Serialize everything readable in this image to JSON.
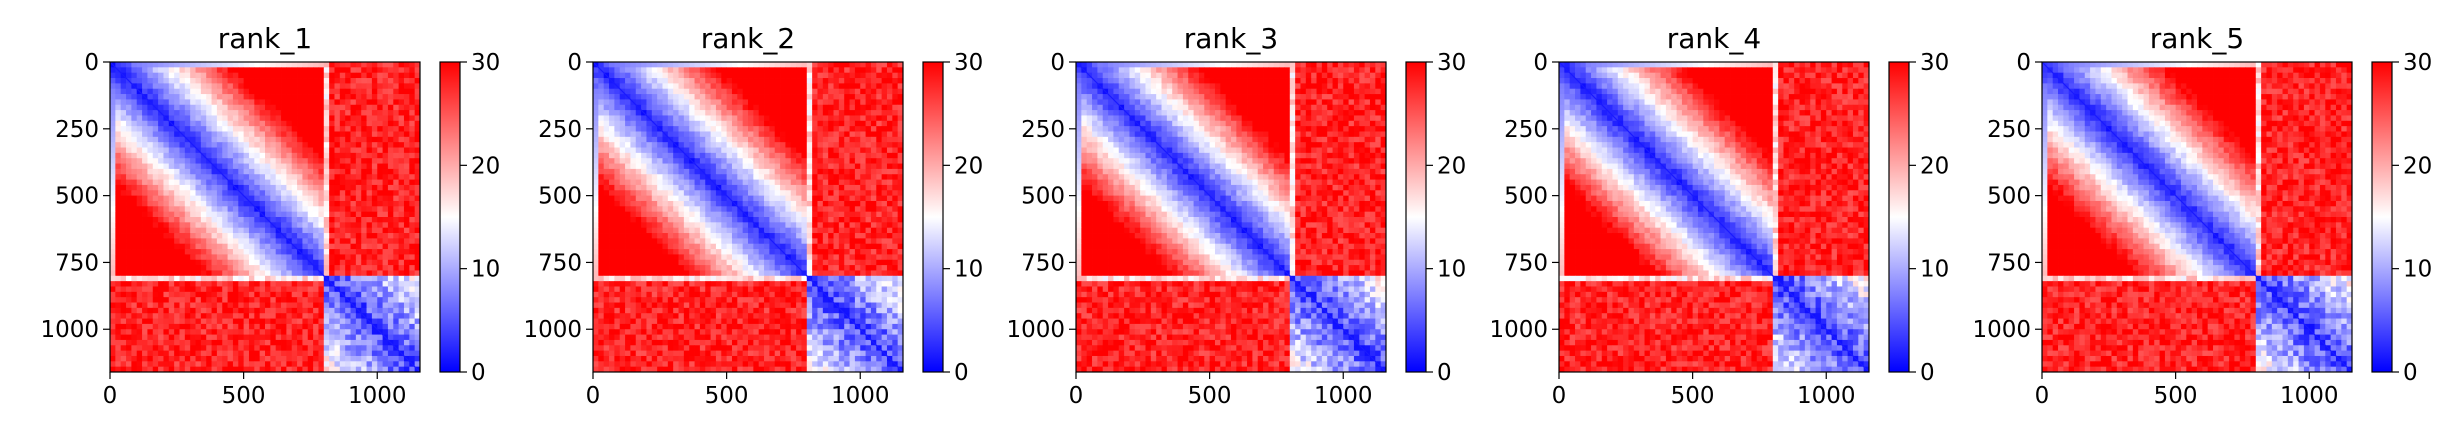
{
  "chart_data": [
    {
      "type": "heatmap",
      "title": "rank_1",
      "xlim": [
        0,
        1160
      ],
      "ylim": [
        1160,
        0
      ],
      "xticks": [
        0,
        500,
        1000
      ],
      "yticks": [
        0,
        250,
        500,
        750,
        1000
      ],
      "colorbar": {
        "min": 0,
        "max": 30,
        "ticks": [
          0,
          10,
          20,
          30
        ],
        "colormap": "bwr"
      },
      "block_boundary": 810,
      "strip_rows": [
        1040
      ],
      "near_block_diagonal": true
    },
    {
      "type": "heatmap",
      "title": "rank_2",
      "xlim": [
        0,
        1160
      ],
      "ylim": [
        1160,
        0
      ],
      "xticks": [
        0,
        500,
        1000
      ],
      "yticks": [
        0,
        250,
        500,
        750,
        1000
      ],
      "colorbar": {
        "min": 0,
        "max": 30,
        "ticks": [
          0,
          10,
          20,
          30
        ],
        "colormap": "bwr"
      },
      "block_boundary": 810,
      "strip_rows": [
        1040
      ],
      "near_block_diagonal": true
    },
    {
      "type": "heatmap",
      "title": "rank_3",
      "xlim": [
        0,
        1160
      ],
      "ylim": [
        1160,
        0
      ],
      "xticks": [
        0,
        500,
        1000
      ],
      "yticks": [
        0,
        250,
        500,
        750,
        1000
      ],
      "colorbar": {
        "min": 0,
        "max": 30,
        "ticks": [
          0,
          10,
          20,
          30
        ],
        "colormap": "bwr"
      },
      "block_boundary": 810,
      "strip_rows": [
        1040
      ],
      "near_block_diagonal": true
    },
    {
      "type": "heatmap",
      "title": "rank_4",
      "xlim": [
        0,
        1160
      ],
      "ylim": [
        1160,
        0
      ],
      "xticks": [
        0,
        500,
        1000
      ],
      "yticks": [
        0,
        250,
        500,
        750,
        1000
      ],
      "colorbar": {
        "min": 0,
        "max": 30,
        "ticks": [
          0,
          10,
          20,
          30
        ],
        "colormap": "bwr"
      },
      "block_boundary": 810,
      "strip_rows": [
        1040
      ],
      "near_block_diagonal": true
    },
    {
      "type": "heatmap",
      "title": "rank_5",
      "xlim": [
        0,
        1160
      ],
      "ylim": [
        1160,
        0
      ],
      "xticks": [
        0,
        500,
        1000
      ],
      "yticks": [
        0,
        250,
        500,
        750,
        1000
      ],
      "colorbar": {
        "min": 0,
        "max": 30,
        "ticks": [
          0,
          10,
          20,
          30
        ],
        "colormap": "bwr"
      },
      "block_boundary": 810,
      "strip_rows": [
        1040
      ],
      "near_block_diagonal": true
    }
  ],
  "colors": {
    "low": "#0000ff",
    "mid": "#ffffff",
    "high": "#ff0000"
  }
}
